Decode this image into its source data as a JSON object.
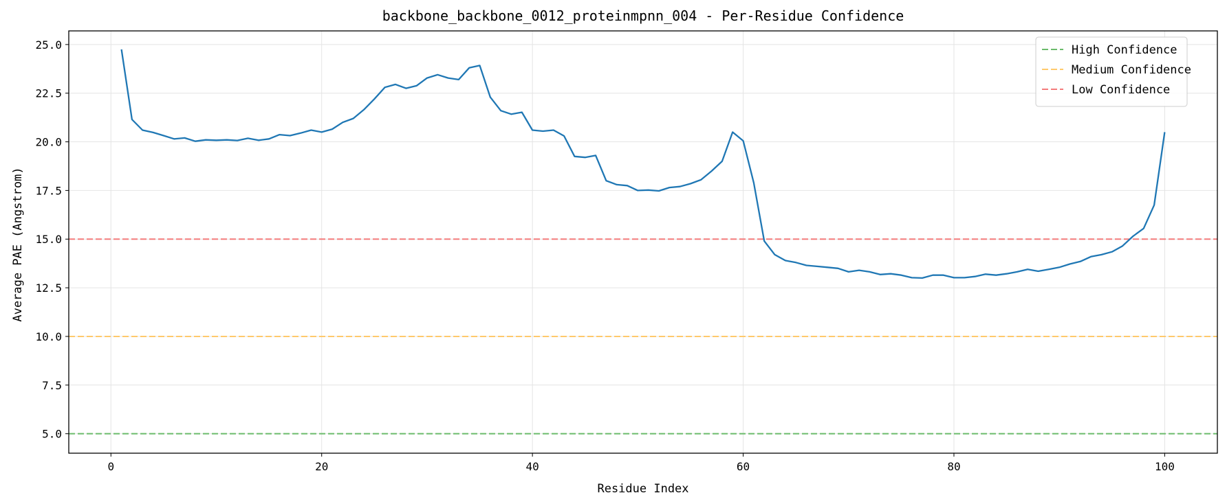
{
  "chart_data": {
    "type": "line",
    "title": "backbone_backbone_0012_proteinmpnn_004 - Per-Residue Confidence",
    "xlabel": "Residue Index",
    "ylabel": "Average PAE (Angstrom)",
    "xlim": [
      -4,
      105
    ],
    "ylim": [
      4.0,
      25.7
    ],
    "xticks": [
      0,
      20,
      40,
      60,
      80,
      100
    ],
    "xtick_labels": [
      "0",
      "20",
      "40",
      "60",
      "80",
      "100"
    ],
    "yticks": [
      5.0,
      7.5,
      10.0,
      12.5,
      15.0,
      17.5,
      20.0,
      22.5,
      25.0
    ],
    "ytick_labels": [
      "5.0",
      "7.5",
      "10.0",
      "12.5",
      "15.0",
      "17.5",
      "20.0",
      "22.5",
      "25.0"
    ],
    "grid": true,
    "legend_position": "top-right",
    "series": [
      {
        "color": "#1f77b4",
        "x": [
          1,
          2,
          3,
          4,
          5,
          6,
          7,
          8,
          9,
          10,
          11,
          12,
          13,
          14,
          15,
          16,
          17,
          18,
          19,
          20,
          21,
          22,
          23,
          24,
          25,
          26,
          27,
          28,
          29,
          30,
          31,
          32,
          33,
          34,
          35,
          36,
          37,
          38,
          39,
          40,
          41,
          42,
          43,
          44,
          45,
          46,
          47,
          48,
          49,
          50,
          51,
          52,
          53,
          54,
          55,
          56,
          57,
          58,
          59,
          60,
          61,
          62,
          63,
          64,
          65,
          66,
          67,
          68,
          69,
          70,
          71,
          72,
          73,
          74,
          75,
          76,
          77,
          78,
          79,
          80,
          81,
          82,
          83,
          84,
          85,
          86,
          87,
          88,
          89,
          90,
          91,
          92,
          93,
          94,
          95,
          96,
          97,
          98,
          99,
          100
        ],
        "values": [
          24.75,
          21.15,
          20.6,
          20.48,
          20.32,
          20.15,
          20.2,
          20.03,
          20.1,
          20.08,
          20.1,
          20.07,
          20.18,
          20.08,
          20.15,
          20.37,
          20.32,
          20.45,
          20.6,
          20.5,
          20.65,
          21.0,
          21.2,
          21.65,
          22.2,
          22.8,
          22.95,
          22.75,
          22.88,
          23.28,
          23.45,
          23.28,
          23.2,
          23.8,
          23.92,
          22.3,
          21.6,
          21.42,
          21.52,
          20.6,
          20.55,
          20.6,
          20.3,
          19.25,
          19.2,
          19.3,
          18.0,
          17.8,
          17.75,
          17.5,
          17.52,
          17.48,
          17.65,
          17.7,
          17.85,
          18.05,
          18.5,
          19.0,
          20.5,
          20.05,
          17.9,
          14.9,
          14.2,
          13.9,
          13.8,
          13.65,
          13.6,
          13.55,
          13.5,
          13.32,
          13.4,
          13.32,
          13.18,
          13.22,
          13.15,
          13.02,
          13.0,
          13.15,
          13.15,
          13.02,
          13.02,
          13.08,
          13.2,
          13.15,
          13.22,
          13.32,
          13.45,
          13.35,
          13.45,
          13.55,
          13.72,
          13.85,
          14.1,
          14.2,
          14.35,
          14.65,
          15.15,
          15.55,
          16.75,
          20.5
        ]
      }
    ],
    "thresholds": [
      {
        "name": "High Confidence",
        "value": 5.0,
        "color": "#6abb6a"
      },
      {
        "name": "Medium Confidence",
        "value": 10.0,
        "color": "#ffc96b"
      },
      {
        "name": "Low Confidence",
        "value": 15.0,
        "color": "#f47b7b"
      }
    ]
  }
}
